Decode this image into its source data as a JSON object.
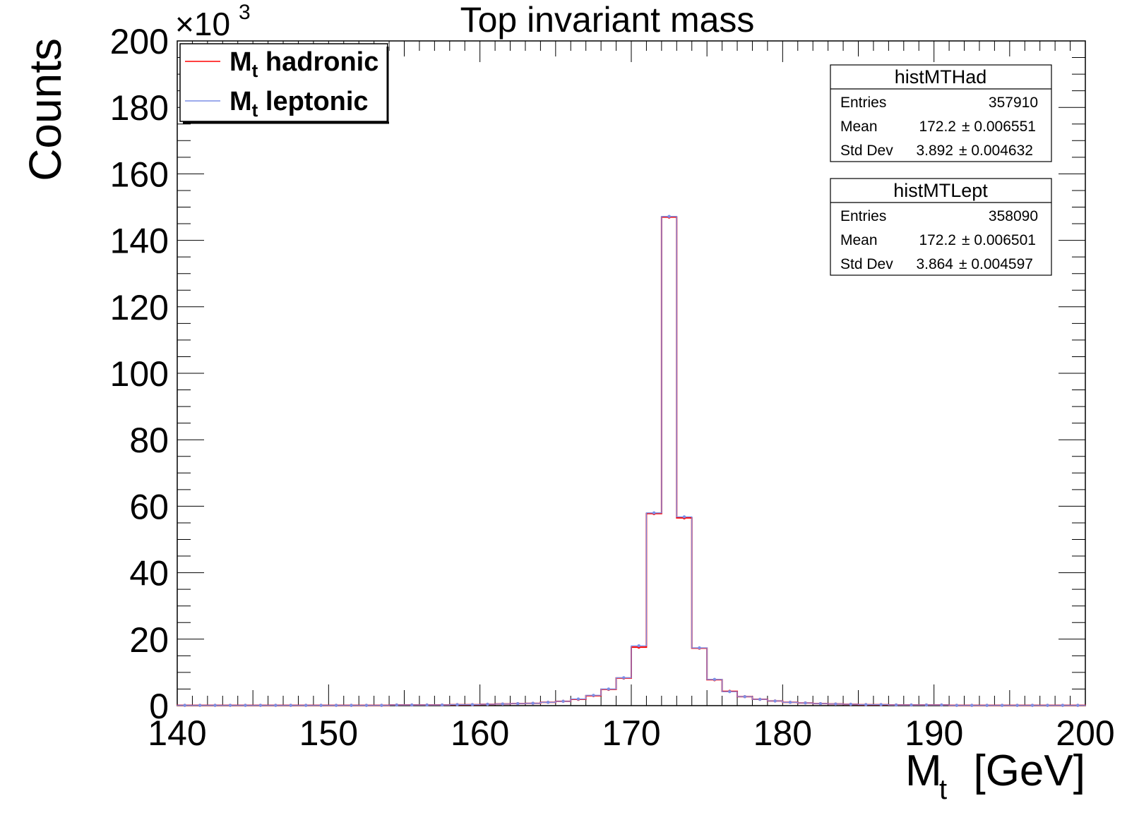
{
  "chart_data": {
    "type": "line",
    "title": "Top invariant mass",
    "xlabel_main": "M",
    "xlabel_sub": "t",
    "xlabel_unit": "[GeV]",
    "ylabel": "Counts",
    "y_multiplier_base": "×10",
    "y_multiplier_exp": "3",
    "xlim": [
      140,
      200
    ],
    "ylim": [
      0,
      200
    ],
    "x_ticks": [
      140,
      150,
      160,
      170,
      180,
      190,
      200
    ],
    "y_ticks": [
      0,
      20,
      40,
      60,
      80,
      100,
      120,
      140,
      160,
      180,
      200
    ],
    "grid": false,
    "legend_position": "top-left",
    "x": [
      140.5,
      141.5,
      142.5,
      143.5,
      144.5,
      145.5,
      146.5,
      147.5,
      148.5,
      149.5,
      150.5,
      151.5,
      152.5,
      153.5,
      154.5,
      155.5,
      156.5,
      157.5,
      158.5,
      159.5,
      160.5,
      161.5,
      162.5,
      163.5,
      164.5,
      165.5,
      166.5,
      167.5,
      168.5,
      169.5,
      170.5,
      171.5,
      172.5,
      173.5,
      174.5,
      175.5,
      176.5,
      177.5,
      178.5,
      179.5,
      180.5,
      181.5,
      182.5,
      183.5,
      184.5,
      185.5,
      186.5,
      187.5,
      188.5,
      189.5,
      190.5,
      191.5,
      192.5,
      193.5,
      194.5,
      195.5,
      196.5,
      197.5,
      198.5,
      199.5
    ],
    "series": [
      {
        "name_main": "M",
        "name_sub": "t",
        "name_rest": " hadronic",
        "color": "#ff0000",
        "values": [
          0.1,
          0.1,
          0.1,
          0.1,
          0.1,
          0.1,
          0.1,
          0.1,
          0.1,
          0.1,
          0.1,
          0.1,
          0.1,
          0.1,
          0.2,
          0.2,
          0.2,
          0.2,
          0.3,
          0.3,
          0.4,
          0.5,
          0.6,
          0.7,
          1.0,
          1.3,
          1.9,
          3.0,
          4.9,
          8.3,
          17.6,
          57.8,
          147.0,
          56.5,
          17.3,
          7.8,
          4.3,
          2.7,
          1.9,
          1.4,
          1.0,
          0.8,
          0.6,
          0.5,
          0.4,
          0.3,
          0.3,
          0.2,
          0.2,
          0.2,
          0.2,
          0.1,
          0.1,
          0.1,
          0.1,
          0.1,
          0.1,
          0.1,
          0.1,
          0.1
        ]
      },
      {
        "name_main": "M",
        "name_sub": "t",
        "name_rest": " leptonic",
        "color": "#7b8fe6",
        "values": [
          0.1,
          0.1,
          0.1,
          0.1,
          0.1,
          0.1,
          0.1,
          0.1,
          0.1,
          0.1,
          0.1,
          0.1,
          0.1,
          0.1,
          0.2,
          0.2,
          0.2,
          0.2,
          0.3,
          0.3,
          0.4,
          0.5,
          0.6,
          0.7,
          1.0,
          1.3,
          2.0,
          3.1,
          5.0,
          8.4,
          18.0,
          58.0,
          147.2,
          56.8,
          17.4,
          7.9,
          4.2,
          2.7,
          1.9,
          1.4,
          1.0,
          0.8,
          0.6,
          0.5,
          0.4,
          0.3,
          0.3,
          0.2,
          0.2,
          0.2,
          0.2,
          0.1,
          0.1,
          0.1,
          0.1,
          0.1,
          0.1,
          0.1,
          0.1,
          0.1
        ]
      }
    ],
    "stats": [
      {
        "name": "histMTHad",
        "rows": [
          {
            "label": "Entries",
            "value": "357910",
            "error": ""
          },
          {
            "label": "Mean",
            "value": "172.2",
            "error": "± 0.006551"
          },
          {
            "label": "Std Dev",
            "value": "3.892",
            "error": "± 0.004632"
          }
        ]
      },
      {
        "name": "histMTLept",
        "rows": [
          {
            "label": "Entries",
            "value": "358090",
            "error": ""
          },
          {
            "label": "Mean",
            "value": "172.2",
            "error": "± 0.006501"
          },
          {
            "label": "Std Dev",
            "value": "3.864",
            "error": "± 0.004597"
          }
        ]
      }
    ]
  }
}
